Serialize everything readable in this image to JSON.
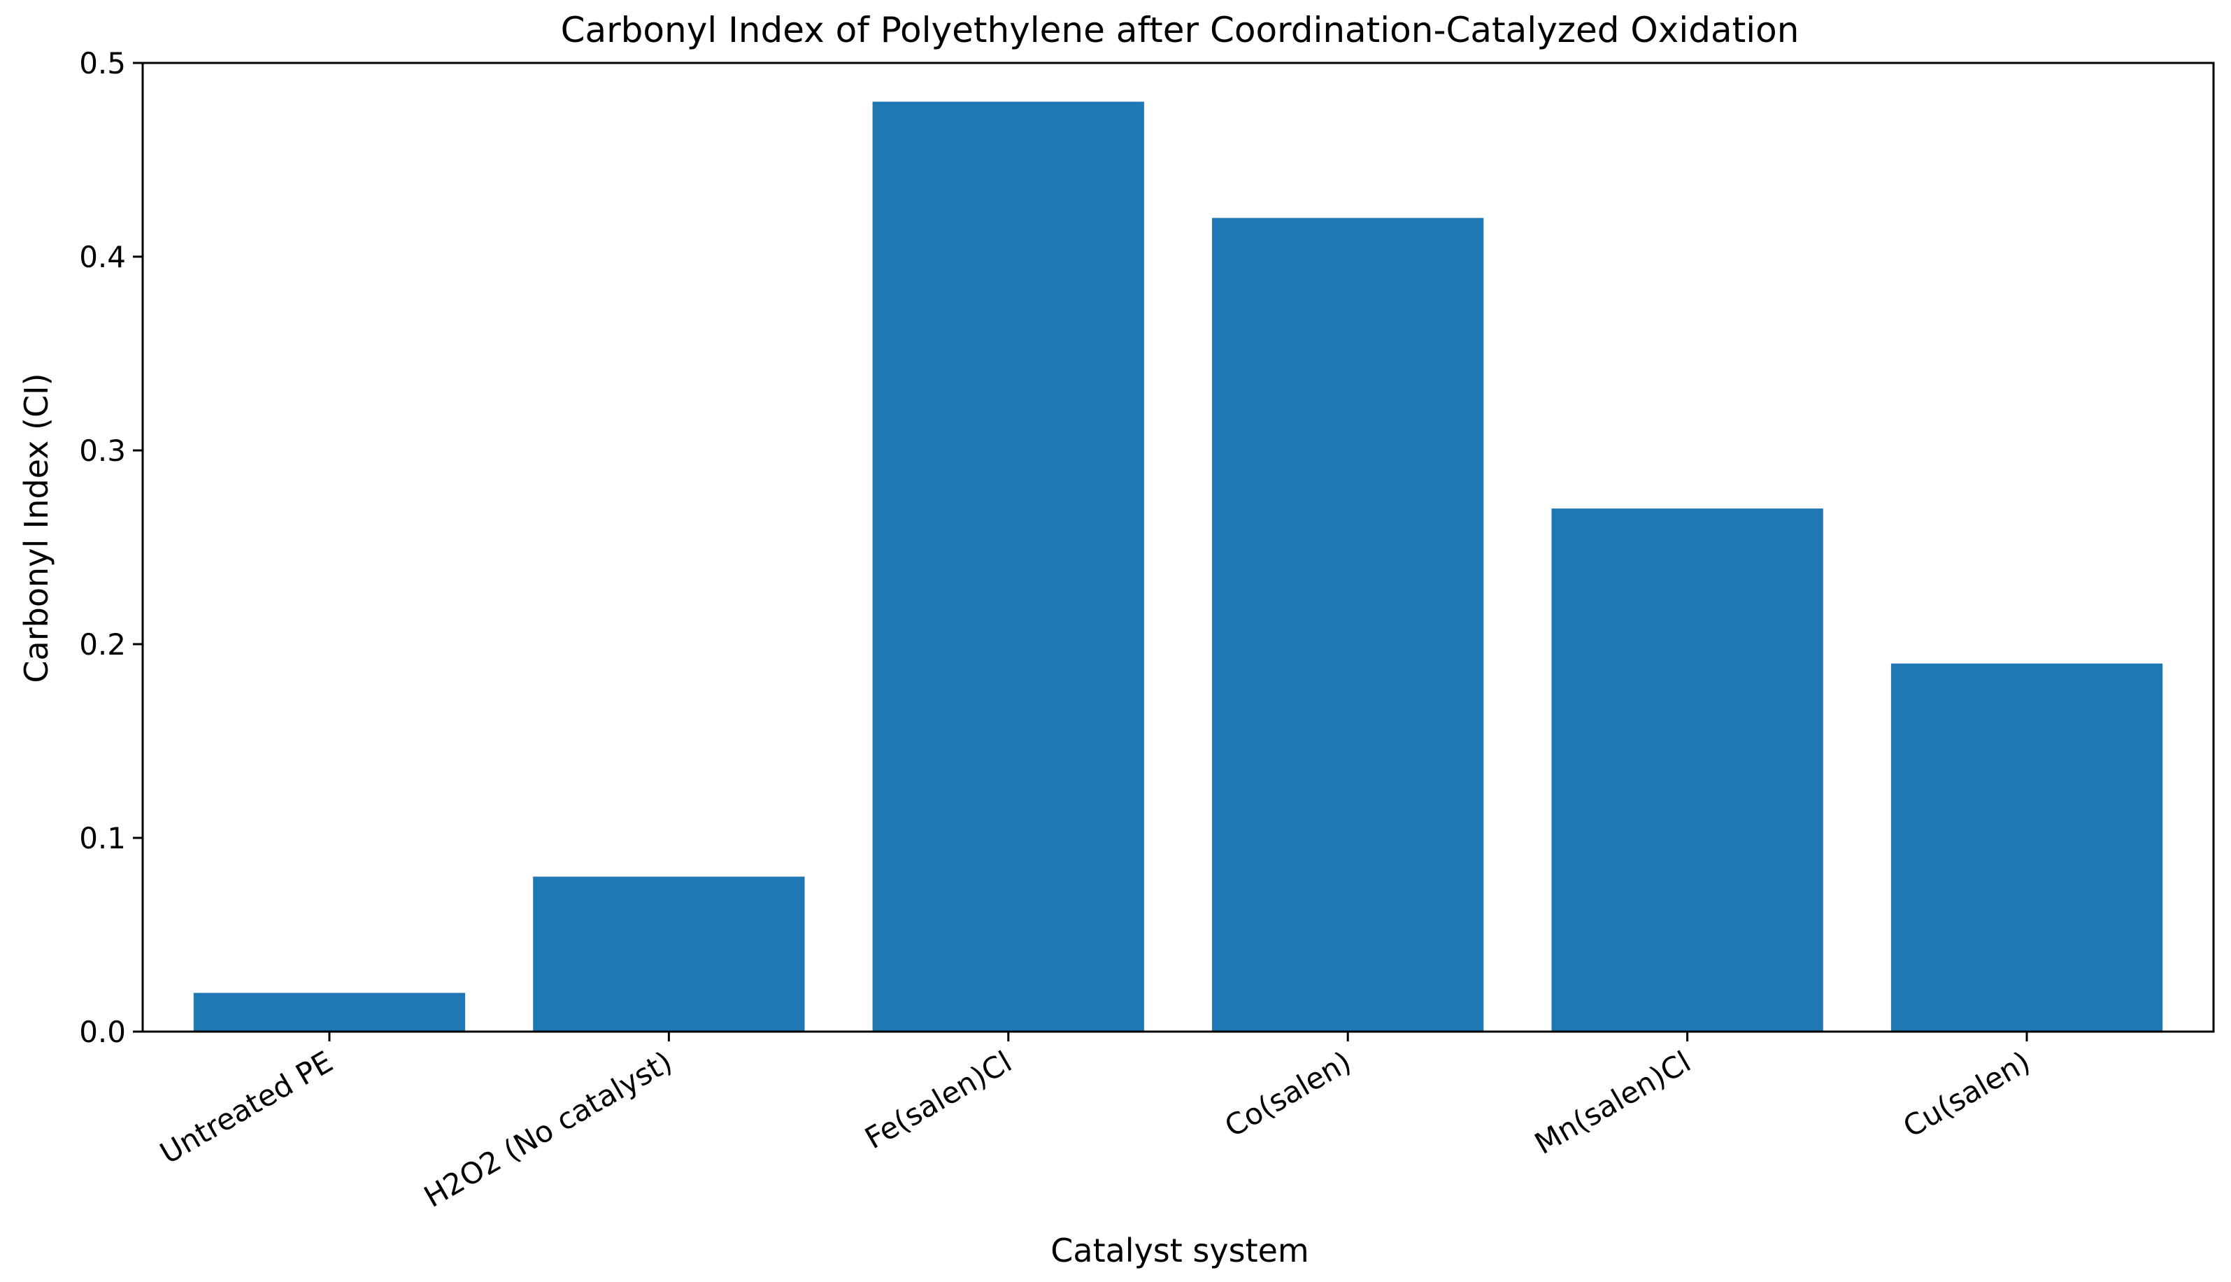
{
  "chart_data": {
    "type": "bar",
    "title": "Carbonyl Index of Polyethylene after Coordination-Catalyzed Oxidation",
    "xlabel": "Catalyst system",
    "ylabel": "Carbonyl Index (CI)",
    "categories": [
      "Untreated PE",
      "H2O2 (No catalyst)",
      "Fe(salen)Cl",
      "Co(salen)",
      "Mn(salen)Cl",
      "Cu(salen)"
    ],
    "values": [
      0.02,
      0.08,
      0.48,
      0.42,
      0.27,
      0.19
    ],
    "ylim": [
      0,
      0.5
    ],
    "yticks": [
      "0.0",
      "0.1",
      "0.2",
      "0.3",
      "0.4",
      "0.5"
    ],
    "grid": false,
    "legend": "none",
    "bar_color": "#1f77b4",
    "axis_color": "#000000"
  }
}
